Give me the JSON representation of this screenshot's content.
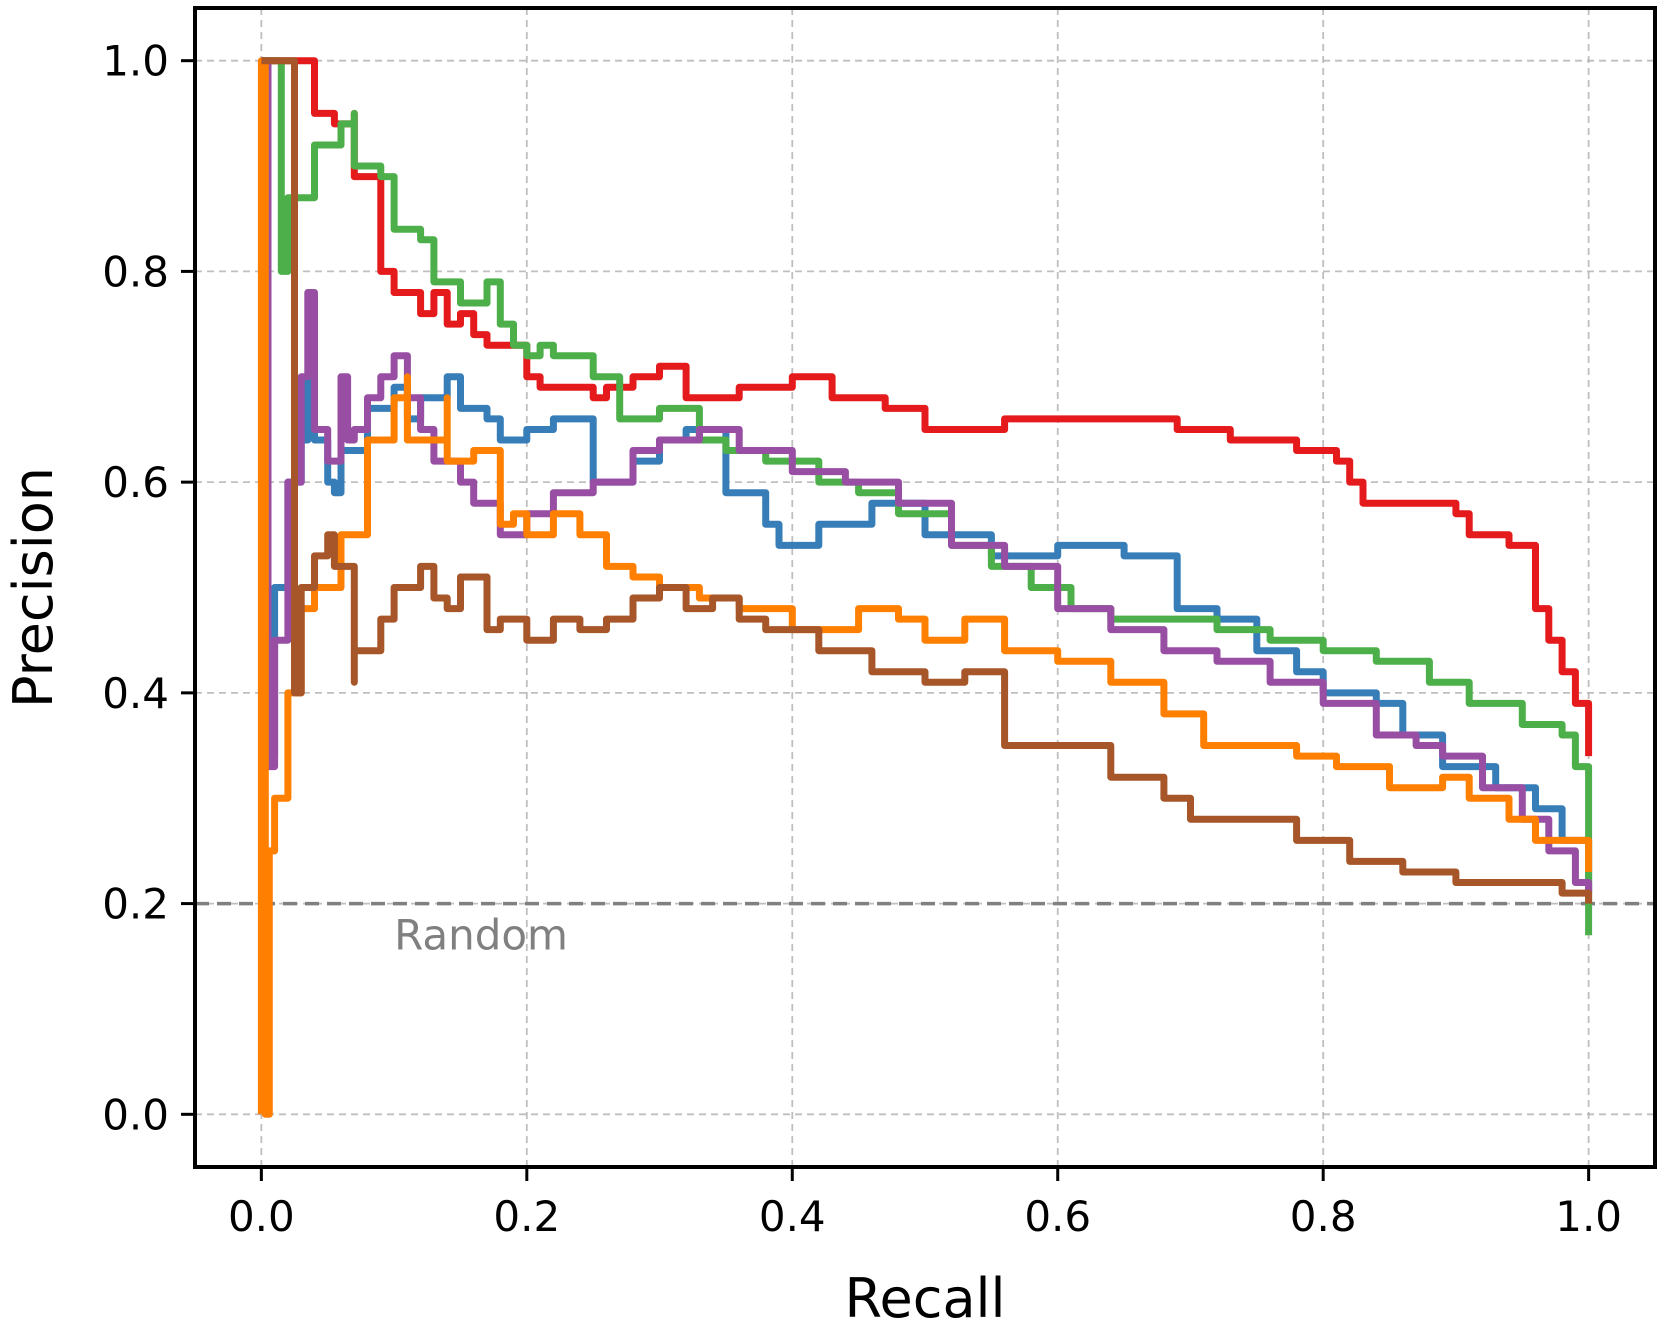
{
  "chart_data": {
    "type": "line",
    "title": "",
    "xlabel": "Recall",
    "ylabel": "Precision",
    "xlim": [
      -0.05,
      1.05
    ],
    "ylim": [
      -0.05,
      1.05
    ],
    "xticks": [
      0.0,
      0.2,
      0.4,
      0.6,
      0.8,
      1.0
    ],
    "xtick_labels": [
      "0.0",
      "0.2",
      "0.4",
      "0.6",
      "0.8",
      "1.0"
    ],
    "yticks": [
      0.0,
      0.2,
      0.4,
      0.6,
      0.8,
      1.0
    ],
    "ytick_labels": [
      "0.0",
      "0.2",
      "0.4",
      "0.6",
      "0.8",
      "1.0"
    ],
    "grid": true,
    "legend": "none",
    "baseline": {
      "label": "Random",
      "y": 0.2,
      "color": "#808080",
      "style": "dashed"
    },
    "series": [
      {
        "color": "#e41a1c",
        "x": [
          0.0,
          0.04,
          0.04,
          0.055,
          0.07,
          0.07,
          0.085,
          0.09,
          0.09,
          0.1,
          0.1,
          0.12,
          0.13,
          0.14,
          0.15,
          0.16,
          0.17,
          0.17,
          0.19,
          0.2,
          0.21,
          0.23,
          0.25,
          0.26,
          0.28,
          0.3,
          0.32,
          0.33,
          0.36,
          0.4,
          0.43,
          0.47,
          0.5,
          0.52,
          0.56,
          0.6,
          0.65,
          0.69,
          0.73,
          0.78,
          0.81,
          0.82,
          0.83,
          0.86,
          0.9,
          0.91,
          0.94,
          0.96,
          0.97,
          0.98,
          0.99,
          1.0,
          1.0
        ],
        "y": [
          1.0,
          1.0,
          0.95,
          0.94,
          0.95,
          0.89,
          0.89,
          0.88,
          0.8,
          0.79,
          0.78,
          0.76,
          0.78,
          0.75,
          0.76,
          0.74,
          0.73,
          0.73,
          0.73,
          0.7,
          0.69,
          0.69,
          0.68,
          0.69,
          0.7,
          0.71,
          0.68,
          0.68,
          0.69,
          0.7,
          0.68,
          0.67,
          0.65,
          0.65,
          0.66,
          0.66,
          0.66,
          0.65,
          0.64,
          0.63,
          0.62,
          0.6,
          0.58,
          0.58,
          0.57,
          0.55,
          0.54,
          0.48,
          0.45,
          0.42,
          0.39,
          0.37,
          0.34
        ]
      },
      {
        "color": "#377eb8",
        "x": [
          0.0,
          0.005,
          0.01,
          0.02,
          0.03,
          0.035,
          0.04,
          0.05,
          0.055,
          0.06,
          0.08,
          0.1,
          0.11,
          0.12,
          0.14,
          0.15,
          0.17,
          0.18,
          0.2,
          0.22,
          0.25,
          0.28,
          0.3,
          0.32,
          0.35,
          0.38,
          0.39,
          0.42,
          0.46,
          0.5,
          0.55,
          0.6,
          0.65,
          0.69,
          0.72,
          0.75,
          0.78,
          0.8,
          0.84,
          0.86,
          0.89,
          0.93,
          0.96,
          0.98,
          1.0,
          1.0
        ],
        "y": [
          1.0,
          0.34,
          0.5,
          0.6,
          0.64,
          0.7,
          0.64,
          0.6,
          0.59,
          0.63,
          0.67,
          0.69,
          0.66,
          0.68,
          0.7,
          0.67,
          0.66,
          0.64,
          0.65,
          0.66,
          0.6,
          0.62,
          0.64,
          0.65,
          0.59,
          0.56,
          0.54,
          0.56,
          0.58,
          0.55,
          0.53,
          0.54,
          0.53,
          0.48,
          0.47,
          0.44,
          0.42,
          0.4,
          0.39,
          0.36,
          0.33,
          0.31,
          0.29,
          0.26,
          0.22,
          0.21
        ]
      },
      {
        "color": "#4daf4a",
        "x": [
          0.0,
          0.015,
          0.015,
          0.02,
          0.04,
          0.06,
          0.07,
          0.07,
          0.09,
          0.1,
          0.12,
          0.13,
          0.15,
          0.17,
          0.18,
          0.19,
          0.2,
          0.21,
          0.22,
          0.25,
          0.27,
          0.3,
          0.33,
          0.35,
          0.38,
          0.42,
          0.45,
          0.48,
          0.52,
          0.55,
          0.58,
          0.61,
          0.64,
          0.68,
          0.72,
          0.76,
          0.8,
          0.84,
          0.88,
          0.91,
          0.95,
          0.98,
          0.99,
          1.0,
          1.0
        ],
        "y": [
          1.0,
          1.0,
          0.8,
          0.87,
          0.92,
          0.94,
          0.95,
          0.9,
          0.89,
          0.84,
          0.83,
          0.79,
          0.77,
          0.79,
          0.75,
          0.73,
          0.72,
          0.73,
          0.72,
          0.7,
          0.66,
          0.67,
          0.64,
          0.63,
          0.62,
          0.6,
          0.59,
          0.57,
          0.54,
          0.52,
          0.5,
          0.48,
          0.47,
          0.47,
          0.46,
          0.45,
          0.44,
          0.43,
          0.41,
          0.39,
          0.37,
          0.36,
          0.33,
          0.28,
          0.17
        ]
      },
      {
        "color": "#984ea3",
        "x": [
          0.0,
          0.005,
          0.01,
          0.02,
          0.03,
          0.035,
          0.04,
          0.05,
          0.06,
          0.065,
          0.07,
          0.08,
          0.09,
          0.1,
          0.11,
          0.12,
          0.13,
          0.15,
          0.16,
          0.18,
          0.2,
          0.22,
          0.25,
          0.28,
          0.3,
          0.33,
          0.36,
          0.4,
          0.44,
          0.48,
          0.52,
          0.56,
          0.6,
          0.64,
          0.68,
          0.72,
          0.76,
          0.8,
          0.84,
          0.87,
          0.89,
          0.92,
          0.95,
          0.97,
          0.99,
          1.0
        ],
        "y": [
          1.0,
          0.33,
          0.45,
          0.6,
          0.7,
          0.78,
          0.65,
          0.62,
          0.7,
          0.64,
          0.65,
          0.68,
          0.7,
          0.72,
          0.68,
          0.65,
          0.62,
          0.6,
          0.58,
          0.55,
          0.57,
          0.59,
          0.6,
          0.63,
          0.64,
          0.65,
          0.63,
          0.61,
          0.6,
          0.58,
          0.54,
          0.52,
          0.48,
          0.46,
          0.44,
          0.43,
          0.41,
          0.39,
          0.36,
          0.35,
          0.34,
          0.31,
          0.28,
          0.25,
          0.22,
          0.21
        ]
      },
      {
        "color": "#ff7f00",
        "x": [
          0.0,
          0.0,
          0.003,
          0.006,
          0.01,
          0.02,
          0.03,
          0.04,
          0.06,
          0.08,
          0.1,
          0.11,
          0.11,
          0.14,
          0.14,
          0.16,
          0.18,
          0.19,
          0.2,
          0.22,
          0.24,
          0.26,
          0.28,
          0.3,
          0.33,
          0.36,
          0.4,
          0.45,
          0.48,
          0.5,
          0.53,
          0.56,
          0.6,
          0.64,
          0.68,
          0.71,
          0.74,
          0.78,
          0.81,
          0.85,
          0.89,
          0.91,
          0.94,
          0.96,
          1.0,
          1.0
        ],
        "y": [
          0.0,
          1.0,
          0.0,
          0.25,
          0.3,
          0.4,
          0.48,
          0.5,
          0.55,
          0.64,
          0.68,
          0.7,
          0.64,
          0.68,
          0.62,
          0.63,
          0.56,
          0.57,
          0.55,
          0.57,
          0.55,
          0.52,
          0.51,
          0.5,
          0.49,
          0.48,
          0.46,
          0.48,
          0.47,
          0.45,
          0.47,
          0.44,
          0.43,
          0.41,
          0.38,
          0.35,
          0.35,
          0.34,
          0.33,
          0.31,
          0.32,
          0.3,
          0.28,
          0.26,
          0.24,
          0.23
        ]
      },
      {
        "color": "#a65628",
        "x": [
          0.0,
          0.025,
          0.025,
          0.03,
          0.04,
          0.05,
          0.055,
          0.07,
          0.07,
          0.09,
          0.1,
          0.12,
          0.13,
          0.14,
          0.15,
          0.17,
          0.18,
          0.2,
          0.22,
          0.24,
          0.26,
          0.28,
          0.3,
          0.32,
          0.34,
          0.36,
          0.38,
          0.42,
          0.46,
          0.5,
          0.53,
          0.56,
          0.6,
          0.64,
          0.68,
          0.7,
          0.74,
          0.78,
          0.82,
          0.86,
          0.9,
          0.94,
          0.98,
          1.0
        ],
        "y": [
          1.0,
          1.0,
          0.4,
          0.5,
          0.53,
          0.55,
          0.52,
          0.41,
          0.44,
          0.47,
          0.5,
          0.52,
          0.49,
          0.48,
          0.51,
          0.46,
          0.47,
          0.45,
          0.47,
          0.46,
          0.47,
          0.49,
          0.5,
          0.48,
          0.49,
          0.47,
          0.46,
          0.44,
          0.42,
          0.41,
          0.42,
          0.35,
          0.35,
          0.32,
          0.3,
          0.28,
          0.28,
          0.26,
          0.24,
          0.23,
          0.22,
          0.22,
          0.21,
          0.2
        ]
      }
    ]
  }
}
